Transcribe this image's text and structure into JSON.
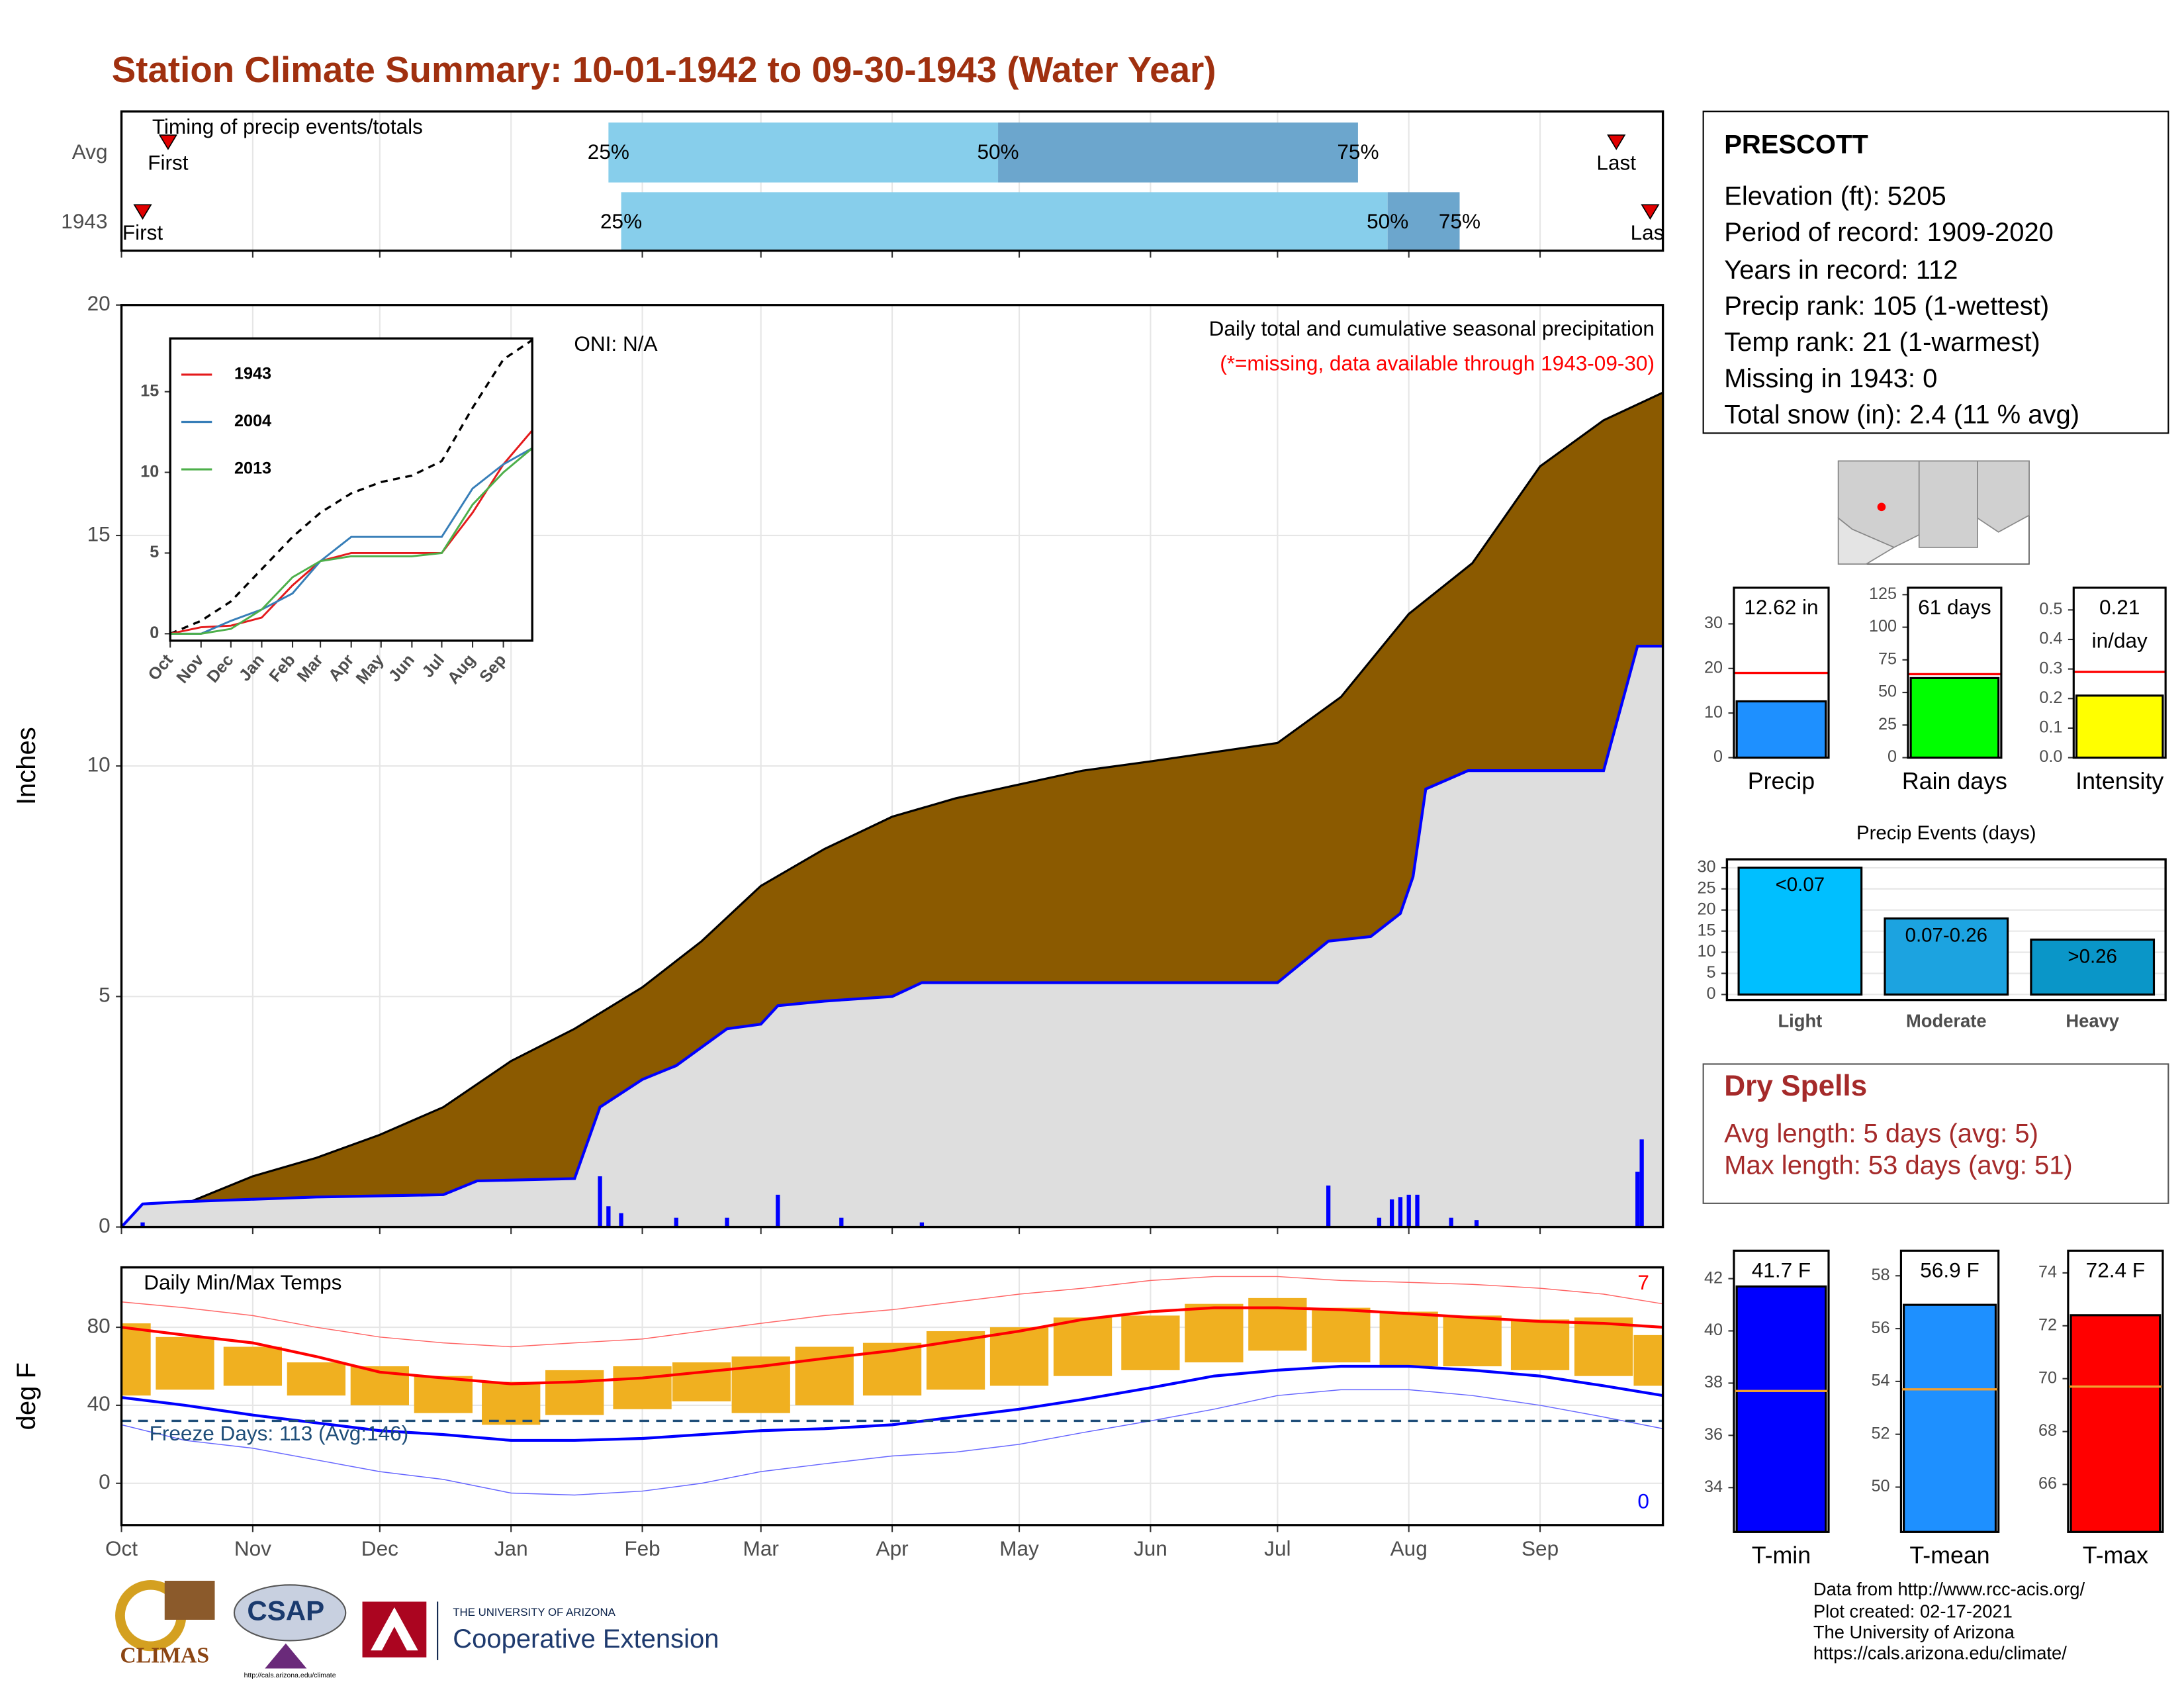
{
  "title": "Station Climate Summary: 10-01-1942 to 09-30-1943 (Water Year)",
  "chart_data": [
    {
      "type": "timeline",
      "title": "Timing of precip events/totals",
      "categories": [
        "Avg",
        "1943"
      ],
      "first": [
        11,
        5
      ],
      "last": [
        353,
        361
      ],
      "percentiles": [
        [
          115,
          207,
          292
        ],
        [
          118,
          299,
          316
        ]
      ],
      "percentile_labels": [
        "25%",
        "50%",
        "75%"
      ],
      "first_label": "First",
      "last_label": "Last",
      "colors": [
        "#87ceeb",
        "#6ca6cd"
      ],
      "marker_color": "#e00000",
      "xlim": [
        0,
        364
      ],
      "xticks": [
        0,
        31,
        61,
        92,
        123,
        151,
        182,
        212,
        243,
        273,
        304,
        335
      ],
      "xtick_labels": false,
      "grid": true
    },
    {
      "type": "area",
      "ylabel": "Inches",
      "subtitle": "Daily total and cumulative seasonal precipitation",
      "note": "(*=missing, data available through 1943-09-30)",
      "oni": "ONI: N/A",
      "average": {
        "color": "#000000",
        "fill": "#8b5a00",
        "x": [
          0,
          15,
          31,
          46,
          61,
          76,
          92,
          107,
          123,
          137,
          151,
          166,
          182,
          197,
          212,
          227,
          243,
          258,
          273,
          288,
          304,
          319,
          335,
          350,
          364
        ],
        "values": [
          0,
          0.5,
          1.1,
          1.5,
          2.0,
          2.6,
          3.6,
          4.3,
          5.2,
          6.2,
          7.4,
          8.2,
          8.9,
          9.3,
          9.6,
          9.9,
          10.1,
          10.3,
          10.5,
          11.5,
          13.3,
          14.4,
          16.5,
          17.5,
          18.1
        ]
      },
      "observed": {
        "color": "#0000ff",
        "fill": "#dedede",
        "x": [
          0,
          5,
          15,
          46,
          76,
          84,
          107,
          113,
          123,
          131,
          143,
          151,
          155,
          166,
          182,
          189,
          212,
          273,
          285,
          295,
          302,
          305,
          308,
          318,
          350,
          358,
          364
        ],
        "values": [
          0,
          0.5,
          0.55,
          0.65,
          0.7,
          1.0,
          1.05,
          2.6,
          3.2,
          3.5,
          4.3,
          4.4,
          4.8,
          4.9,
          5.0,
          5.3,
          5.3,
          5.3,
          6.2,
          6.3,
          6.8,
          7.6,
          9.5,
          9.9,
          9.9,
          12.6,
          12.6
        ]
      },
      "bars": {
        "color": "#0000ff",
        "x": [
          5,
          113,
          115,
          118,
          131,
          143,
          155,
          170,
          189,
          285,
          297,
          300,
          302,
          304,
          306,
          314,
          320,
          358,
          359
        ],
        "values": [
          0.1,
          1.1,
          0.45,
          0.3,
          0.2,
          0.2,
          0.7,
          0.2,
          0.1,
          0.9,
          0.2,
          0.6,
          0.65,
          0.7,
          0.7,
          0.2,
          0.15,
          1.2,
          1.9
        ]
      },
      "note_color": "#ff0000",
      "xlim": [
        0,
        364
      ],
      "xticks": [
        0,
        31,
        61,
        92,
        123,
        151,
        182,
        212,
        243,
        273,
        304,
        335
      ],
      "xtick_labels": false,
      "ylim": [
        0,
        20
      ],
      "yticks": [
        0,
        5,
        10,
        15,
        20
      ],
      "grid": true
    },
    {
      "type": "line",
      "average": {
        "color": "#000000",
        "values": [
          0,
          0.8,
          2,
          4,
          6,
          7.5,
          8.7,
          9.4,
          9.8,
          10.7,
          14,
          17,
          18.2
        ]
      },
      "x": [
        0,
        31,
        61,
        92,
        123,
        151,
        182,
        212,
        243,
        273,
        304,
        335,
        364
      ],
      "series": [
        {
          "name": "1943",
          "color": "#e41a1c",
          "values": [
            0,
            0.4,
            0.5,
            1,
            3,
            4.5,
            5,
            5,
            5,
            5,
            7.5,
            10.5,
            12.6
          ]
        },
        {
          "name": "2004",
          "color": "#377eb8",
          "values": [
            0,
            0,
            0.8,
            1.5,
            2.5,
            4.5,
            6,
            6,
            6,
            6,
            9,
            10.5,
            11.5
          ]
        },
        {
          "name": "2013",
          "color": "#4daf4a",
          "values": [
            0,
            0,
            0.3,
            1.5,
            3.5,
            4.5,
            4.8,
            4.8,
            4.8,
            5,
            8,
            10,
            11.5
          ]
        }
      ],
      "xlim": [
        0,
        364
      ],
      "xticks": [
        {
          "value": 0,
          "label": "Oct"
        },
        {
          "value": 31,
          "label": "Nov"
        },
        {
          "value": 61,
          "label": "Dec"
        },
        {
          "value": 92,
          "label": "Jan"
        },
        {
          "value": 123,
          "label": "Feb"
        },
        {
          "value": 151,
          "label": "Mar"
        },
        {
          "value": 182,
          "label": "Apr"
        },
        {
          "value": 212,
          "label": "May"
        },
        {
          "value": 243,
          "label": "Jun"
        },
        {
          "value": 273,
          "label": "Jul"
        },
        {
          "value": 304,
          "label": "Aug"
        },
        {
          "value": 335,
          "label": "Sep"
        }
      ],
      "ylim": [
        -0.43,
        18.3
      ],
      "yticks": [
        0,
        5,
        10,
        15
      ],
      "grid": false,
      "legend": "top-left"
    },
    {
      "type": "range",
      "title": "Daily Min/Max Temps",
      "ylabel": "deg F",
      "freeze_label": "Freeze Days: 113 (Avg:146)",
      "freeze_line": 32,
      "freeze_color": "#1f4e79",
      "record_high_count": 7,
      "record_low_count": 0,
      "x": [
        0,
        15,
        31,
        46,
        61,
        76,
        92,
        107,
        123,
        137,
        151,
        166,
        182,
        197,
        212,
        227,
        243,
        258,
        273,
        288,
        304,
        319,
        335,
        350,
        364
      ],
      "high": [
        82,
        75,
        70,
        62,
        60,
        55,
        52,
        58,
        60,
        62,
        65,
        70,
        72,
        78,
        80,
        85,
        86,
        92,
        95,
        90,
        88,
        86,
        84,
        85,
        76
      ],
      "low": [
        45,
        48,
        50,
        45,
        40,
        36,
        30,
        35,
        38,
        42,
        36,
        40,
        45,
        48,
        50,
        55,
        58,
        62,
        68,
        62,
        60,
        60,
        58,
        55,
        50
      ],
      "range_color": "#f0b020",
      "series": [
        {
          "color": "#ff0000",
          "values": [
            80,
            76,
            72,
            65,
            57,
            54,
            51,
            52,
            54,
            57,
            60,
            64,
            68,
            73,
            78,
            84,
            88,
            90,
            90,
            89,
            87,
            85,
            83,
            82,
            80
          ]
        },
        {
          "color": "#0000ff",
          "values": [
            44,
            40,
            35,
            31,
            27,
            25,
            22,
            22,
            23,
            25,
            27,
            28,
            30,
            34,
            38,
            43,
            49,
            55,
            58,
            60,
            60,
            58,
            55,
            50,
            45
          ]
        }
      ],
      "record_series": [
        {
          "color": "#ff6666",
          "values": [
            93,
            90,
            86,
            80,
            75,
            72,
            70,
            72,
            74,
            78,
            82,
            86,
            89,
            93,
            97,
            100,
            104,
            106,
            106,
            104,
            103,
            102,
            100,
            97,
            92
          ]
        },
        {
          "color": "#6666ff",
          "values": [
            30,
            22,
            18,
            12,
            6,
            2,
            -5,
            -6,
            -4,
            0,
            6,
            10,
            14,
            16,
            20,
            26,
            32,
            38,
            45,
            48,
            48,
            45,
            40,
            34,
            28
          ]
        }
      ],
      "xlim": [
        0,
        364
      ],
      "xticks": [
        {
          "value": 0,
          "label": "Oct"
        },
        {
          "value": 31,
          "label": "Nov"
        },
        {
          "value": 61,
          "label": "Dec"
        },
        {
          "value": 92,
          "label": "Jan"
        },
        {
          "value": 123,
          "label": "Feb"
        },
        {
          "value": 151,
          "label": "Mar"
        },
        {
          "value": 182,
          "label": "Apr"
        },
        {
          "value": 212,
          "label": "May"
        },
        {
          "value": 243,
          "label": "Jun"
        },
        {
          "value": 273,
          "label": "Jul"
        },
        {
          "value": 304,
          "label": "Aug"
        },
        {
          "value": 335,
          "label": "Sep"
        }
      ],
      "ylim": [
        -21.4,
        110.7
      ],
      "yticks": [
        0,
        40,
        80
      ],
      "grid": true
    },
    {
      "type": "bar",
      "categories": [
        "Precip"
      ],
      "values": [
        12.62
      ],
      "value_labels": [
        "12.62 in"
      ],
      "color": "#1e90ff",
      "average": 19,
      "average_color": "#ff0000",
      "ylim": [
        0,
        38.1
      ],
      "yticks": [
        0,
        10,
        20,
        30
      ]
    },
    {
      "type": "bar",
      "categories": [
        "Rain days"
      ],
      "values": [
        61
      ],
      "value_labels": [
        "61 days"
      ],
      "color": "#00ff00",
      "average": 64,
      "average_color": "#ff0000",
      "ylim": [
        0,
        130.3
      ],
      "yticks": [
        0,
        25,
        50,
        75,
        100,
        125
      ]
    },
    {
      "type": "bar",
      "categories": [
        "Intensity"
      ],
      "values": [
        0.21
      ],
      "value_labels": [
        "0.21 in/day"
      ],
      "color": "#ffff00",
      "average": 0.29,
      "average_color": "#ff0000",
      "ylim": [
        0,
        0.575
      ],
      "yticks": [
        {
          "value": 0,
          "label": "0.0"
        },
        {
          "value": 0.1,
          "label": "0.1"
        },
        {
          "value": 0.2,
          "label": "0.2"
        },
        {
          "value": 0.3,
          "label": "0.3"
        },
        {
          "value": 0.4,
          "label": "0.4"
        },
        {
          "value": 0.5,
          "label": "0.5"
        }
      ]
    },
    {
      "type": "bar",
      "title": "Precip Events (days)",
      "categories": [
        "Light",
        "Moderate",
        "Heavy"
      ],
      "values": [
        30,
        18,
        13
      ],
      "bin_labels": [
        "<0.07",
        "0.07-0.26",
        ">0.26"
      ],
      "colors": [
        "#00bfff",
        "#1ca3e0",
        "#0a96c8"
      ],
      "ylim": [
        -1.3,
        32
      ],
      "yticks": [
        0,
        5,
        10,
        15,
        20,
        25,
        30
      ],
      "grid": true
    },
    {
      "type": "bar",
      "categories": [
        "T-min"
      ],
      "values": [
        41.7
      ],
      "value_labels": [
        "41.7 F"
      ],
      "color": "#0000ff",
      "average": 37.7,
      "average_color": "#f0a030",
      "ylim": [
        32.3,
        43.07
      ],
      "yticks": [
        34,
        36,
        38,
        40,
        42
      ]
    },
    {
      "type": "bar",
      "categories": [
        "T-mean"
      ],
      "values": [
        56.9
      ],
      "value_labels": [
        "56.9 F"
      ],
      "color": "#1e90ff",
      "average": 53.7,
      "average_color": "#f0a030",
      "ylim": [
        48.3,
        58.95
      ],
      "yticks": [
        50,
        52,
        54,
        56,
        58
      ]
    },
    {
      "type": "bar",
      "categories": [
        "T-max"
      ],
      "values": [
        72.4
      ],
      "value_labels": [
        "72.4 F"
      ],
      "color": "#ff0000",
      "average": 69.7,
      "average_color": "#f0a030",
      "ylim": [
        64.2,
        74.84
      ],
      "yticks": [
        66,
        68,
        70,
        72,
        74
      ]
    }
  ],
  "station": {
    "name": "PRESCOTT",
    "lines": [
      "Elevation (ft): 5205",
      "Period of record: 1909-2020",
      "Years in record: 112",
      "Precip rank: 105 (1-wettest)",
      "Temp rank: 21 (1-warmest)",
      "Missing in 1943: 0",
      "Total snow (in): 2.4 (11 % avg)"
    ]
  },
  "dry_spells": {
    "title": "Dry Spells",
    "lines": [
      "Avg length: 5 days (avg: 5)",
      "Max length: 53 days (avg: 51)"
    ]
  },
  "footer": [
    "Data from http://www.rcc-acis.org/",
    "Plot created: 02-17-2021",
    "The University of Arizona",
    "https://cals.arizona.edu/climate/"
  ],
  "logos": {
    "climas": "CLIMAS",
    "csap": "CSAP",
    "csap_url": "http://cals.arizona.edu/climate",
    "ua": "THE UNIVERSITY OF ARIZONA",
    "coop": "Cooperative Extension"
  }
}
